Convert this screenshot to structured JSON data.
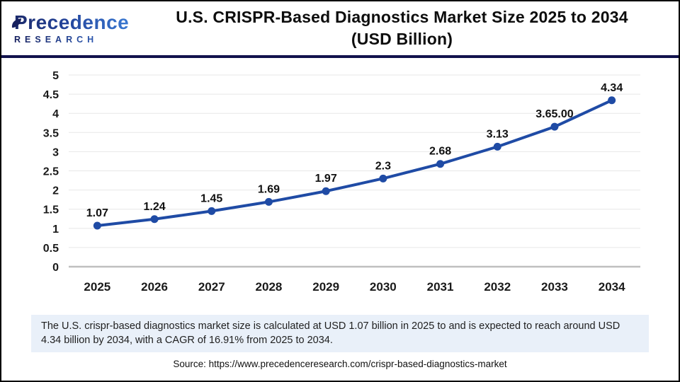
{
  "logo": {
    "name": "Precedence",
    "sub": "RESEARCH"
  },
  "header": {
    "title_line1": "U.S. CRISPR-Based Diagnostics Market Size 2025 to 2034",
    "title_line2": "(USD Billion)"
  },
  "chart_data": {
    "type": "line",
    "title": "U.S. CRISPR-Based Diagnostics Market Size 2025 to 2034 (USD Billion)",
    "categories": [
      "2025",
      "2026",
      "2027",
      "2028",
      "2029",
      "2030",
      "2031",
      "2032",
      "2033",
      "2034"
    ],
    "values": [
      1.07,
      1.24,
      1.45,
      1.69,
      1.97,
      2.3,
      2.68,
      3.13,
      3.65,
      4.34
    ],
    "point_labels": [
      "1.07",
      "1.24",
      "1.45",
      "1.69",
      "1.97",
      "2.3",
      "2.68",
      "3.13",
      "3.65.00",
      "4.34"
    ],
    "xlabel": "",
    "ylabel": "",
    "ylim": [
      0,
      5
    ],
    "ytick_labels": [
      "0",
      "0.5",
      "1",
      "1.5",
      "2",
      "2.5",
      "3",
      "3.5",
      "4",
      "4.5",
      "5"
    ],
    "grid": true,
    "legend": "none",
    "line_color": "#1f4ba5",
    "gridline_color": "#e7e7e7",
    "axis_color": "#bfbfbf"
  },
  "summary": {
    "text": "The U.S. crispr-based diagnostics market size is calculated at USD 1.07 billion in 2025 to and is expected to reach around USD 4.34 billion by 2034, with a CAGR of 16.91% from 2025 to 2034."
  },
  "source": {
    "text": "Source: https://www.precedenceresearch.com/crispr-based-diagnostics-market"
  }
}
